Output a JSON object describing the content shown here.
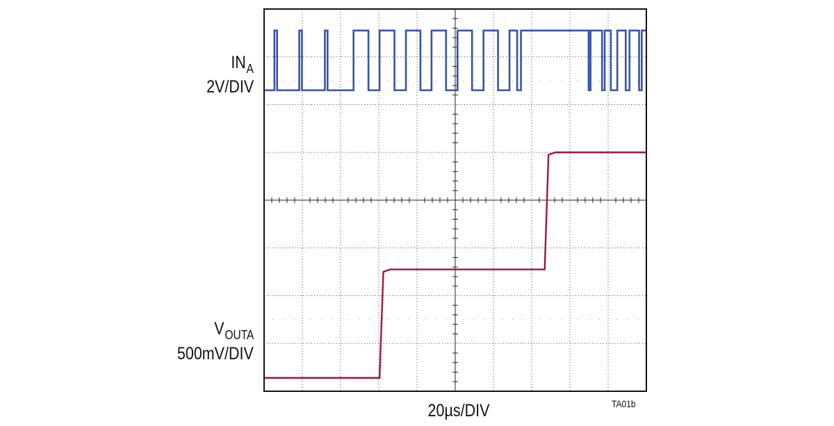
{
  "chart_data": {
    "type": "line",
    "title": "",
    "grid": true,
    "grid_divisions": {
      "x": 10,
      "y": 8
    },
    "xlabel": "20µs/DIV",
    "figure_id": "TA01b",
    "series": [
      {
        "name": "IN",
        "name_sub": "A",
        "scale_label": "2V/DIV",
        "color": "#3553a8",
        "baseline_div": 6.3,
        "high_div": 7.55,
        "transitions": [
          [
            0.27,
            1
          ],
          [
            0.34,
            0
          ],
          [
            0.92,
            1
          ],
          [
            0.99,
            0
          ],
          [
            1.59,
            1
          ],
          [
            1.66,
            0
          ],
          [
            2.34,
            1
          ],
          [
            2.73,
            0
          ],
          [
            3.02,
            1
          ],
          [
            3.41,
            0
          ],
          [
            3.71,
            1
          ],
          [
            4.09,
            0
          ],
          [
            4.38,
            1
          ],
          [
            4.76,
            0
          ],
          [
            5.06,
            1
          ],
          [
            5.44,
            0
          ],
          [
            5.74,
            1
          ],
          [
            6.12,
            0
          ],
          [
            6.42,
            1
          ],
          [
            6.62,
            0
          ],
          [
            6.72,
            1
          ],
          [
            8.49,
            0
          ],
          [
            8.54,
            1
          ],
          [
            8.84,
            0
          ],
          [
            8.91,
            1
          ],
          [
            9.07,
            0
          ],
          [
            9.24,
            1
          ],
          [
            9.46,
            0
          ],
          [
            9.56,
            1
          ],
          [
            9.81,
            0
          ],
          [
            9.88,
            1
          ]
        ]
      },
      {
        "name": "V",
        "name_sub": "OUTA",
        "scale_label": "500mV/DIV",
        "color": "#a3143c",
        "points": [
          [
            0,
            0.28
          ],
          [
            3.02,
            0.28
          ],
          [
            3.12,
            2.5
          ],
          [
            3.3,
            2.55
          ],
          [
            7.34,
            2.55
          ],
          [
            7.44,
            4.95
          ],
          [
            7.62,
            5.0
          ],
          [
            10,
            5.0
          ]
        ]
      }
    ]
  }
}
